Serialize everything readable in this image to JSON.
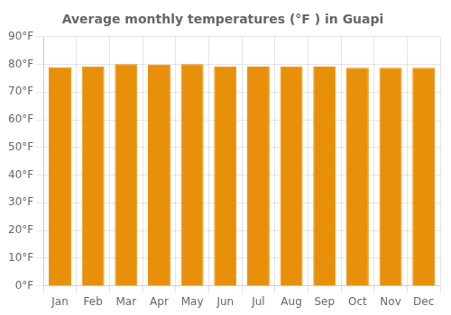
{
  "chart_data": {
    "type": "bar",
    "title": "Average monthly temperatures (°F ) in Guapi",
    "categories": [
      "Jan",
      "Feb",
      "Mar",
      "Apr",
      "May",
      "Jun",
      "Jul",
      "Aug",
      "Sep",
      "Oct",
      "Nov",
      "Dec"
    ],
    "values": [
      79.0,
      79.3,
      80.1,
      79.9,
      80.1,
      79.3,
      79.2,
      79.3,
      79.2,
      78.8,
      78.8,
      78.8
    ],
    "color": "#E8900A",
    "ylim": [
      0,
      90
    ],
    "yticks": [
      {
        "value": 0,
        "label": "0°F"
      },
      {
        "value": 10,
        "label": "10°F"
      },
      {
        "value": 20,
        "label": "20°F"
      },
      {
        "value": 30,
        "label": "30°F"
      },
      {
        "value": 40,
        "label": "40°F"
      },
      {
        "value": 50,
        "label": "50°F"
      },
      {
        "value": 60,
        "label": "60°F"
      },
      {
        "value": 70,
        "label": "70°F"
      },
      {
        "value": 80,
        "label": "80°F"
      },
      {
        "value": 90,
        "label": "90°F"
      }
    ],
    "grid": true
  }
}
